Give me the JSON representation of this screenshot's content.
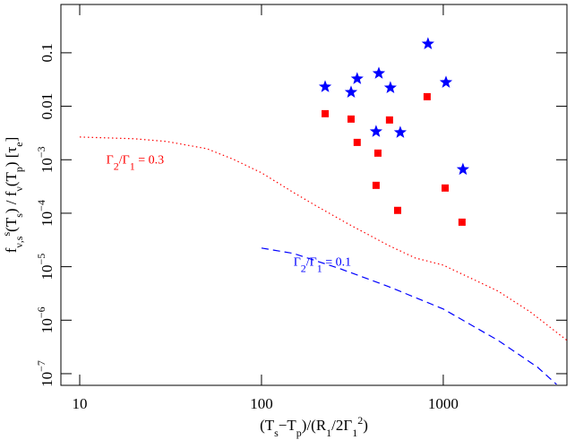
{
  "chart_data": {
    "type": "scatter",
    "log_x": true,
    "log_y": true,
    "xlim": [
      7.88,
      4790
    ],
    "ylim": [
      6.05e-08,
      0.8
    ],
    "xticks": [
      10,
      100,
      1000
    ],
    "yticks": [
      {
        "value": 0.1,
        "label": "0.1"
      },
      {
        "value": 0.01,
        "label": "0.01"
      },
      {
        "value": 0.001,
        "label": "10",
        "exponent": "−3"
      },
      {
        "value": 0.0001,
        "label": "10",
        "exponent": "−4"
      },
      {
        "value": 1e-05,
        "label": "10",
        "exponent": "−5"
      },
      {
        "value": 1e-06,
        "label": "10",
        "exponent": "−6"
      },
      {
        "value": 1e-07,
        "label": "10",
        "exponent": "−7"
      }
    ],
    "xlabel": [
      {
        "text": "(T"
      },
      {
        "text": "s",
        "pos": "sub"
      },
      {
        "text": "−T"
      },
      {
        "text": "p",
        "pos": "sub"
      },
      {
        "text": ")/(R"
      },
      {
        "text": "1",
        "pos": "sub"
      },
      {
        "text": "/2Γ"
      },
      {
        "text": "1",
        "pos": "sub"
      },
      {
        "text": "2",
        "pos": "super"
      },
      {
        "text": ")"
      }
    ],
    "ylabel": [
      {
        "text": "f"
      },
      {
        "text": "ν,s",
        "pos": "sub"
      },
      {
        "text": "s",
        "pos": "super"
      },
      {
        "text": "(T"
      },
      {
        "text": "s",
        "pos": "sub"
      },
      {
        "text": ") / f"
      },
      {
        "text": "ν",
        "pos": "sub"
      },
      {
        "text": "(T"
      },
      {
        "text": "p",
        "pos": "sub"
      },
      {
        "text": ") [τ"
      },
      {
        "text": "e",
        "pos": "sub"
      },
      {
        "text": "]"
      }
    ],
    "series": [
      {
        "kind": "star",
        "color": "#0000ff",
        "x": [
          224,
          311,
          336,
          442,
          512,
          580,
          427,
          824,
          1035,
          1283
        ],
        "values": [
          0.0231,
          0.0183,
          0.0327,
          0.0412,
          0.0222,
          0.00323,
          0.00336,
          0.147,
          0.028,
          0.00066
        ]
      },
      {
        "kind": "square",
        "color": "#ff0000",
        "x": [
          224,
          311,
          336,
          506,
          437,
          427,
          561,
          815,
          1024,
          1268
        ],
        "values": [
          0.00726,
          0.00576,
          0.00211,
          0.00554,
          0.00133,
          0.000332,
          0.000113,
          0.0151,
          0.000296,
          6.8e-05
        ]
      },
      {
        "kind": "dotted",
        "color": "#ff0000",
        "x": [
          10,
          20,
          30,
          50,
          70,
          100,
          150,
          200,
          300,
          500,
          700,
          1000,
          2000,
          3000,
          4790
        ],
        "values": [
          0.00266,
          0.00247,
          0.0022,
          0.00161,
          0.00102,
          0.00057,
          0.000244,
          0.000137,
          6.3e-05,
          2.5e-05,
          1.46e-05,
          1.07e-05,
          3.5e-06,
          1.44e-06,
          4.2e-07
        ]
      },
      {
        "kind": "dashed",
        "color": "#0000ff",
        "x": [
          100,
          150,
          270,
          500,
          1000,
          2000,
          3300,
          4200
        ],
        "values": [
          2.23e-05,
          1.77e-05,
          9.2e-06,
          4.25e-06,
          1.62e-06,
          4.2e-07,
          1.32e-07,
          6.3e-08
        ]
      }
    ],
    "annotations": [
      {
        "color": "#ff0000",
        "x": 14,
        "y": 0.00085,
        "parts": [
          {
            "text": "Γ"
          },
          {
            "text": "2",
            "pos": "sub"
          },
          {
            "text": "/Γ"
          },
          {
            "text": "1",
            "pos": "sub"
          },
          {
            "text": " = 0.3"
          }
        ]
      },
      {
        "color": "#0000ff",
        "x": 150,
        "y": 1.05e-05,
        "parts": [
          {
            "text": "Γ"
          },
          {
            "text": "2",
            "pos": "sub"
          },
          {
            "text": "/Γ"
          },
          {
            "text": "1",
            "pos": "sub"
          },
          {
            "text": " = 0.1"
          }
        ]
      }
    ]
  }
}
